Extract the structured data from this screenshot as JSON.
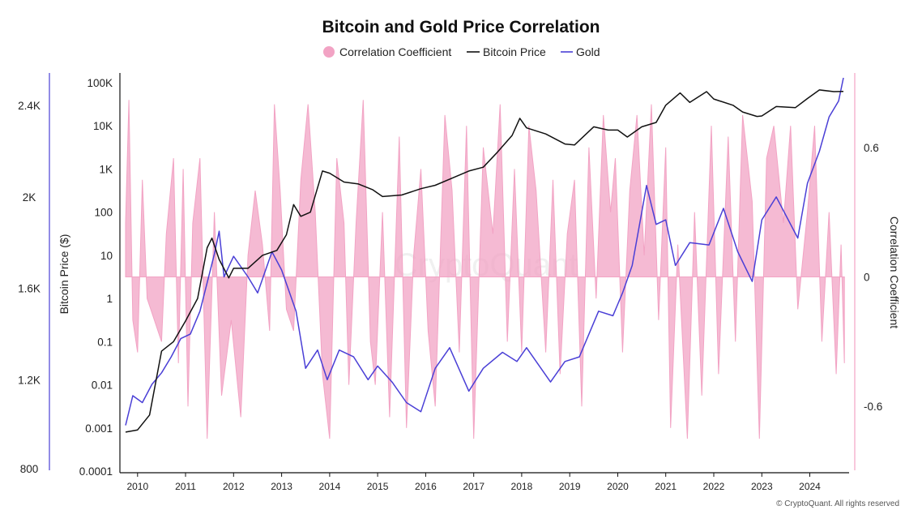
{
  "chart_data": {
    "type": "line",
    "title": "Bitcoin and Gold Price Correlation",
    "legend": {
      "placement": "top-center",
      "items": [
        {
          "label": "Correlation Coefficient",
          "color": "#f2a3c4",
          "marker": "circle"
        },
        {
          "label": "Bitcoin Price",
          "color": "#111111",
          "marker": "line"
        },
        {
          "label": "Gold",
          "color": "#4a3fd6",
          "marker": "line"
        }
      ]
    },
    "x_axis": {
      "label": "",
      "range": [
        2009.7,
        2024.75
      ],
      "ticks": [
        "2010",
        "2011",
        "2012",
        "2013",
        "2014",
        "2015",
        "2016",
        "2017",
        "2018",
        "2019",
        "2020",
        "2021",
        "2022",
        "2023",
        "2024"
      ]
    },
    "y_axis_bitcoin": {
      "label": "Bitcoin Price ($)",
      "scale": "log",
      "range": [
        0.0001,
        100000
      ],
      "ticks": [
        "100K",
        "10K",
        "1K",
        "100",
        "10",
        "1",
        "0.1",
        "0.01",
        "0.001",
        "0.0001"
      ]
    },
    "y_axis_gold": {
      "label": "",
      "range": [
        800,
        2500
      ],
      "ticks": [
        "2.4K",
        "2K",
        "1.6K",
        "1.2K",
        "800"
      ]
    },
    "y_axis_correlation": {
      "label": "Correlation Coefficient",
      "range": [
        -0.9,
        0.9
      ],
      "ticks": [
        "0.6",
        "0",
        "-0.6"
      ]
    },
    "series": [
      {
        "name": "Bitcoin Price",
        "color": "#111111",
        "axis": "bitcoin",
        "points": [
          [
            2009.75,
            0.0008
          ],
          [
            2010.0,
            0.0009
          ],
          [
            2010.25,
            0.002
          ],
          [
            2010.5,
            0.06
          ],
          [
            2010.75,
            0.1
          ],
          [
            2011.0,
            0.3
          ],
          [
            2011.25,
            1
          ],
          [
            2011.45,
            15
          ],
          [
            2011.55,
            25
          ],
          [
            2011.7,
            8
          ],
          [
            2011.9,
            3
          ],
          [
            2012.0,
            5
          ],
          [
            2012.3,
            5
          ],
          [
            2012.6,
            10
          ],
          [
            2012.9,
            13
          ],
          [
            2013.1,
            30
          ],
          [
            2013.25,
            150
          ],
          [
            2013.4,
            80
          ],
          [
            2013.6,
            100
          ],
          [
            2013.85,
            900
          ],
          [
            2014.0,
            800
          ],
          [
            2014.3,
            500
          ],
          [
            2014.6,
            450
          ],
          [
            2014.9,
            330
          ],
          [
            2015.1,
            230
          ],
          [
            2015.5,
            250
          ],
          [
            2015.9,
            350
          ],
          [
            2016.2,
            420
          ],
          [
            2016.6,
            650
          ],
          [
            2016.9,
            900
          ],
          [
            2017.2,
            1100
          ],
          [
            2017.5,
            2500
          ],
          [
            2017.8,
            6000
          ],
          [
            2017.96,
            15000
          ],
          [
            2018.1,
            9000
          ],
          [
            2018.5,
            6500
          ],
          [
            2018.9,
            3800
          ],
          [
            2019.1,
            3600
          ],
          [
            2019.5,
            9500
          ],
          [
            2019.8,
            8000
          ],
          [
            2020.0,
            8000
          ],
          [
            2020.2,
            5500
          ],
          [
            2020.5,
            9500
          ],
          [
            2020.8,
            12000
          ],
          [
            2021.0,
            30000
          ],
          [
            2021.3,
            58000
          ],
          [
            2021.5,
            35000
          ],
          [
            2021.85,
            62000
          ],
          [
            2022.0,
            42000
          ],
          [
            2022.4,
            30000
          ],
          [
            2022.6,
            21000
          ],
          [
            2022.9,
            16500
          ],
          [
            2023.0,
            17000
          ],
          [
            2023.3,
            28000
          ],
          [
            2023.7,
            26500
          ],
          [
            2023.95,
            43000
          ],
          [
            2024.2,
            68000
          ],
          [
            2024.5,
            62000
          ],
          [
            2024.7,
            63000
          ]
        ]
      },
      {
        "name": "Gold",
        "color": "#4a3fd6",
        "axis": "gold",
        "points": [
          [
            2009.75,
            1000
          ],
          [
            2009.9,
            1130
          ],
          [
            2010.1,
            1100
          ],
          [
            2010.3,
            1180
          ],
          [
            2010.5,
            1230
          ],
          [
            2010.7,
            1300
          ],
          [
            2010.9,
            1380
          ],
          [
            2011.1,
            1400
          ],
          [
            2011.3,
            1500
          ],
          [
            2011.6,
            1750
          ],
          [
            2011.7,
            1850
          ],
          [
            2011.8,
            1650
          ],
          [
            2012.0,
            1740
          ],
          [
            2012.3,
            1650
          ],
          [
            2012.5,
            1580
          ],
          [
            2012.8,
            1760
          ],
          [
            2013.0,
            1680
          ],
          [
            2013.3,
            1500
          ],
          [
            2013.5,
            1250
          ],
          [
            2013.75,
            1330
          ],
          [
            2013.95,
            1200
          ],
          [
            2014.2,
            1330
          ],
          [
            2014.5,
            1300
          ],
          [
            2014.8,
            1200
          ],
          [
            2015.0,
            1260
          ],
          [
            2015.3,
            1190
          ],
          [
            2015.6,
            1100
          ],
          [
            2015.9,
            1060
          ],
          [
            2016.2,
            1250
          ],
          [
            2016.5,
            1340
          ],
          [
            2016.9,
            1150
          ],
          [
            2017.2,
            1250
          ],
          [
            2017.6,
            1320
          ],
          [
            2017.9,
            1280
          ],
          [
            2018.1,
            1340
          ],
          [
            2018.6,
            1190
          ],
          [
            2018.9,
            1280
          ],
          [
            2019.2,
            1300
          ],
          [
            2019.6,
            1500
          ],
          [
            2019.9,
            1480
          ],
          [
            2020.1,
            1580
          ],
          [
            2020.3,
            1700
          ],
          [
            2020.6,
            2050
          ],
          [
            2020.8,
            1880
          ],
          [
            2021.0,
            1900
          ],
          [
            2021.2,
            1700
          ],
          [
            2021.5,
            1800
          ],
          [
            2021.9,
            1790
          ],
          [
            2022.2,
            1950
          ],
          [
            2022.5,
            1760
          ],
          [
            2022.8,
            1630
          ],
          [
            2023.0,
            1900
          ],
          [
            2023.3,
            2000
          ],
          [
            2023.75,
            1820
          ],
          [
            2023.95,
            2060
          ],
          [
            2024.2,
            2200
          ],
          [
            2024.4,
            2350
          ],
          [
            2024.6,
            2420
          ],
          [
            2024.7,
            2600
          ]
        ]
      },
      {
        "name": "Correlation Coefficient",
        "color": "#f2a3c4",
        "axis": "correlation",
        "fill": "area",
        "points": [
          [
            2009.75,
            0.25
          ],
          [
            2009.82,
            0.82
          ],
          [
            2009.9,
            -0.2
          ],
          [
            2010.0,
            -0.35
          ],
          [
            2010.1,
            0.45
          ],
          [
            2010.2,
            -0.1
          ],
          [
            2010.5,
            -0.3
          ],
          [
            2010.6,
            0.2
          ],
          [
            2010.75,
            0.55
          ],
          [
            2010.85,
            -0.4
          ],
          [
            2010.95,
            0.5
          ],
          [
            2011.05,
            -0.6
          ],
          [
            2011.15,
            0.25
          ],
          [
            2011.3,
            0.55
          ],
          [
            2011.45,
            -0.75
          ],
          [
            2011.6,
            0.3
          ],
          [
            2011.75,
            -0.55
          ],
          [
            2011.95,
            -0.2
          ],
          [
            2012.15,
            -0.65
          ],
          [
            2012.3,
            0.1
          ],
          [
            2012.45,
            0.4
          ],
          [
            2012.6,
            0.15
          ],
          [
            2012.75,
            -0.25
          ],
          [
            2012.85,
            0.8
          ],
          [
            2012.97,
            0.4
          ],
          [
            2013.1,
            -0.15
          ],
          [
            2013.25,
            -0.25
          ],
          [
            2013.4,
            0.45
          ],
          [
            2013.55,
            0.8
          ],
          [
            2013.7,
            0.3
          ],
          [
            2013.85,
            -0.45
          ],
          [
            2014.0,
            -0.75
          ],
          [
            2014.15,
            0.55
          ],
          [
            2014.3,
            0.25
          ],
          [
            2014.4,
            -0.5
          ],
          [
            2014.55,
            0.25
          ],
          [
            2014.7,
            0.82
          ],
          [
            2014.85,
            -0.3
          ],
          [
            2014.95,
            -0.5
          ],
          [
            2015.1,
            0.3
          ],
          [
            2015.25,
            -0.65
          ],
          [
            2015.45,
            0.65
          ],
          [
            2015.6,
            -0.7
          ],
          [
            2015.75,
            0.1
          ],
          [
            2015.9,
            0.5
          ],
          [
            2016.05,
            -0.25
          ],
          [
            2016.2,
            -0.6
          ],
          [
            2016.4,
            0.75
          ],
          [
            2016.55,
            0.4
          ],
          [
            2016.7,
            -0.35
          ],
          [
            2016.85,
            0.7
          ],
          [
            2017.0,
            -0.75
          ],
          [
            2017.2,
            0.6
          ],
          [
            2017.4,
            0.2
          ],
          [
            2017.55,
            0.8
          ],
          [
            2017.7,
            -0.3
          ],
          [
            2017.85,
            0.5
          ],
          [
            2018.0,
            -0.35
          ],
          [
            2018.15,
            0.7
          ],
          [
            2018.3,
            0.4
          ],
          [
            2018.5,
            -0.35
          ],
          [
            2018.65,
            0.45
          ],
          [
            2018.8,
            -0.45
          ],
          [
            2018.95,
            0.2
          ],
          [
            2019.1,
            0.45
          ],
          [
            2019.25,
            -0.6
          ],
          [
            2019.4,
            0.6
          ],
          [
            2019.55,
            -0.1
          ],
          [
            2019.7,
            0.75
          ],
          [
            2019.85,
            0.3
          ],
          [
            2019.95,
            0.55
          ],
          [
            2020.1,
            -0.35
          ],
          [
            2020.25,
            0.4
          ],
          [
            2020.4,
            0.75
          ],
          [
            2020.55,
            0.1
          ],
          [
            2020.7,
            0.8
          ],
          [
            2020.85,
            -0.2
          ],
          [
            2021.0,
            0.6
          ],
          [
            2021.1,
            -0.7
          ],
          [
            2021.25,
            0.15
          ],
          [
            2021.45,
            -0.75
          ],
          [
            2021.6,
            0.3
          ],
          [
            2021.75,
            -0.55
          ],
          [
            2021.95,
            0.7
          ],
          [
            2022.1,
            -0.45
          ],
          [
            2022.3,
            0.65
          ],
          [
            2022.45,
            -0.3
          ],
          [
            2022.6,
            0.75
          ],
          [
            2022.8,
            0.35
          ],
          [
            2022.95,
            -0.75
          ],
          [
            2023.1,
            0.55
          ],
          [
            2023.25,
            0.7
          ],
          [
            2023.45,
            0.25
          ],
          [
            2023.6,
            0.7
          ],
          [
            2023.75,
            -0.15
          ],
          [
            2023.95,
            0.3
          ],
          [
            2024.1,
            0.7
          ],
          [
            2024.25,
            -0.3
          ],
          [
            2024.4,
            0.3
          ],
          [
            2024.55,
            -0.45
          ],
          [
            2024.65,
            0.15
          ],
          [
            2024.72,
            -0.4
          ]
        ]
      }
    ]
  },
  "watermark": "CryptoQuant",
  "footer": {
    "copyright": "© CryptoQuant. All rights reserved"
  }
}
